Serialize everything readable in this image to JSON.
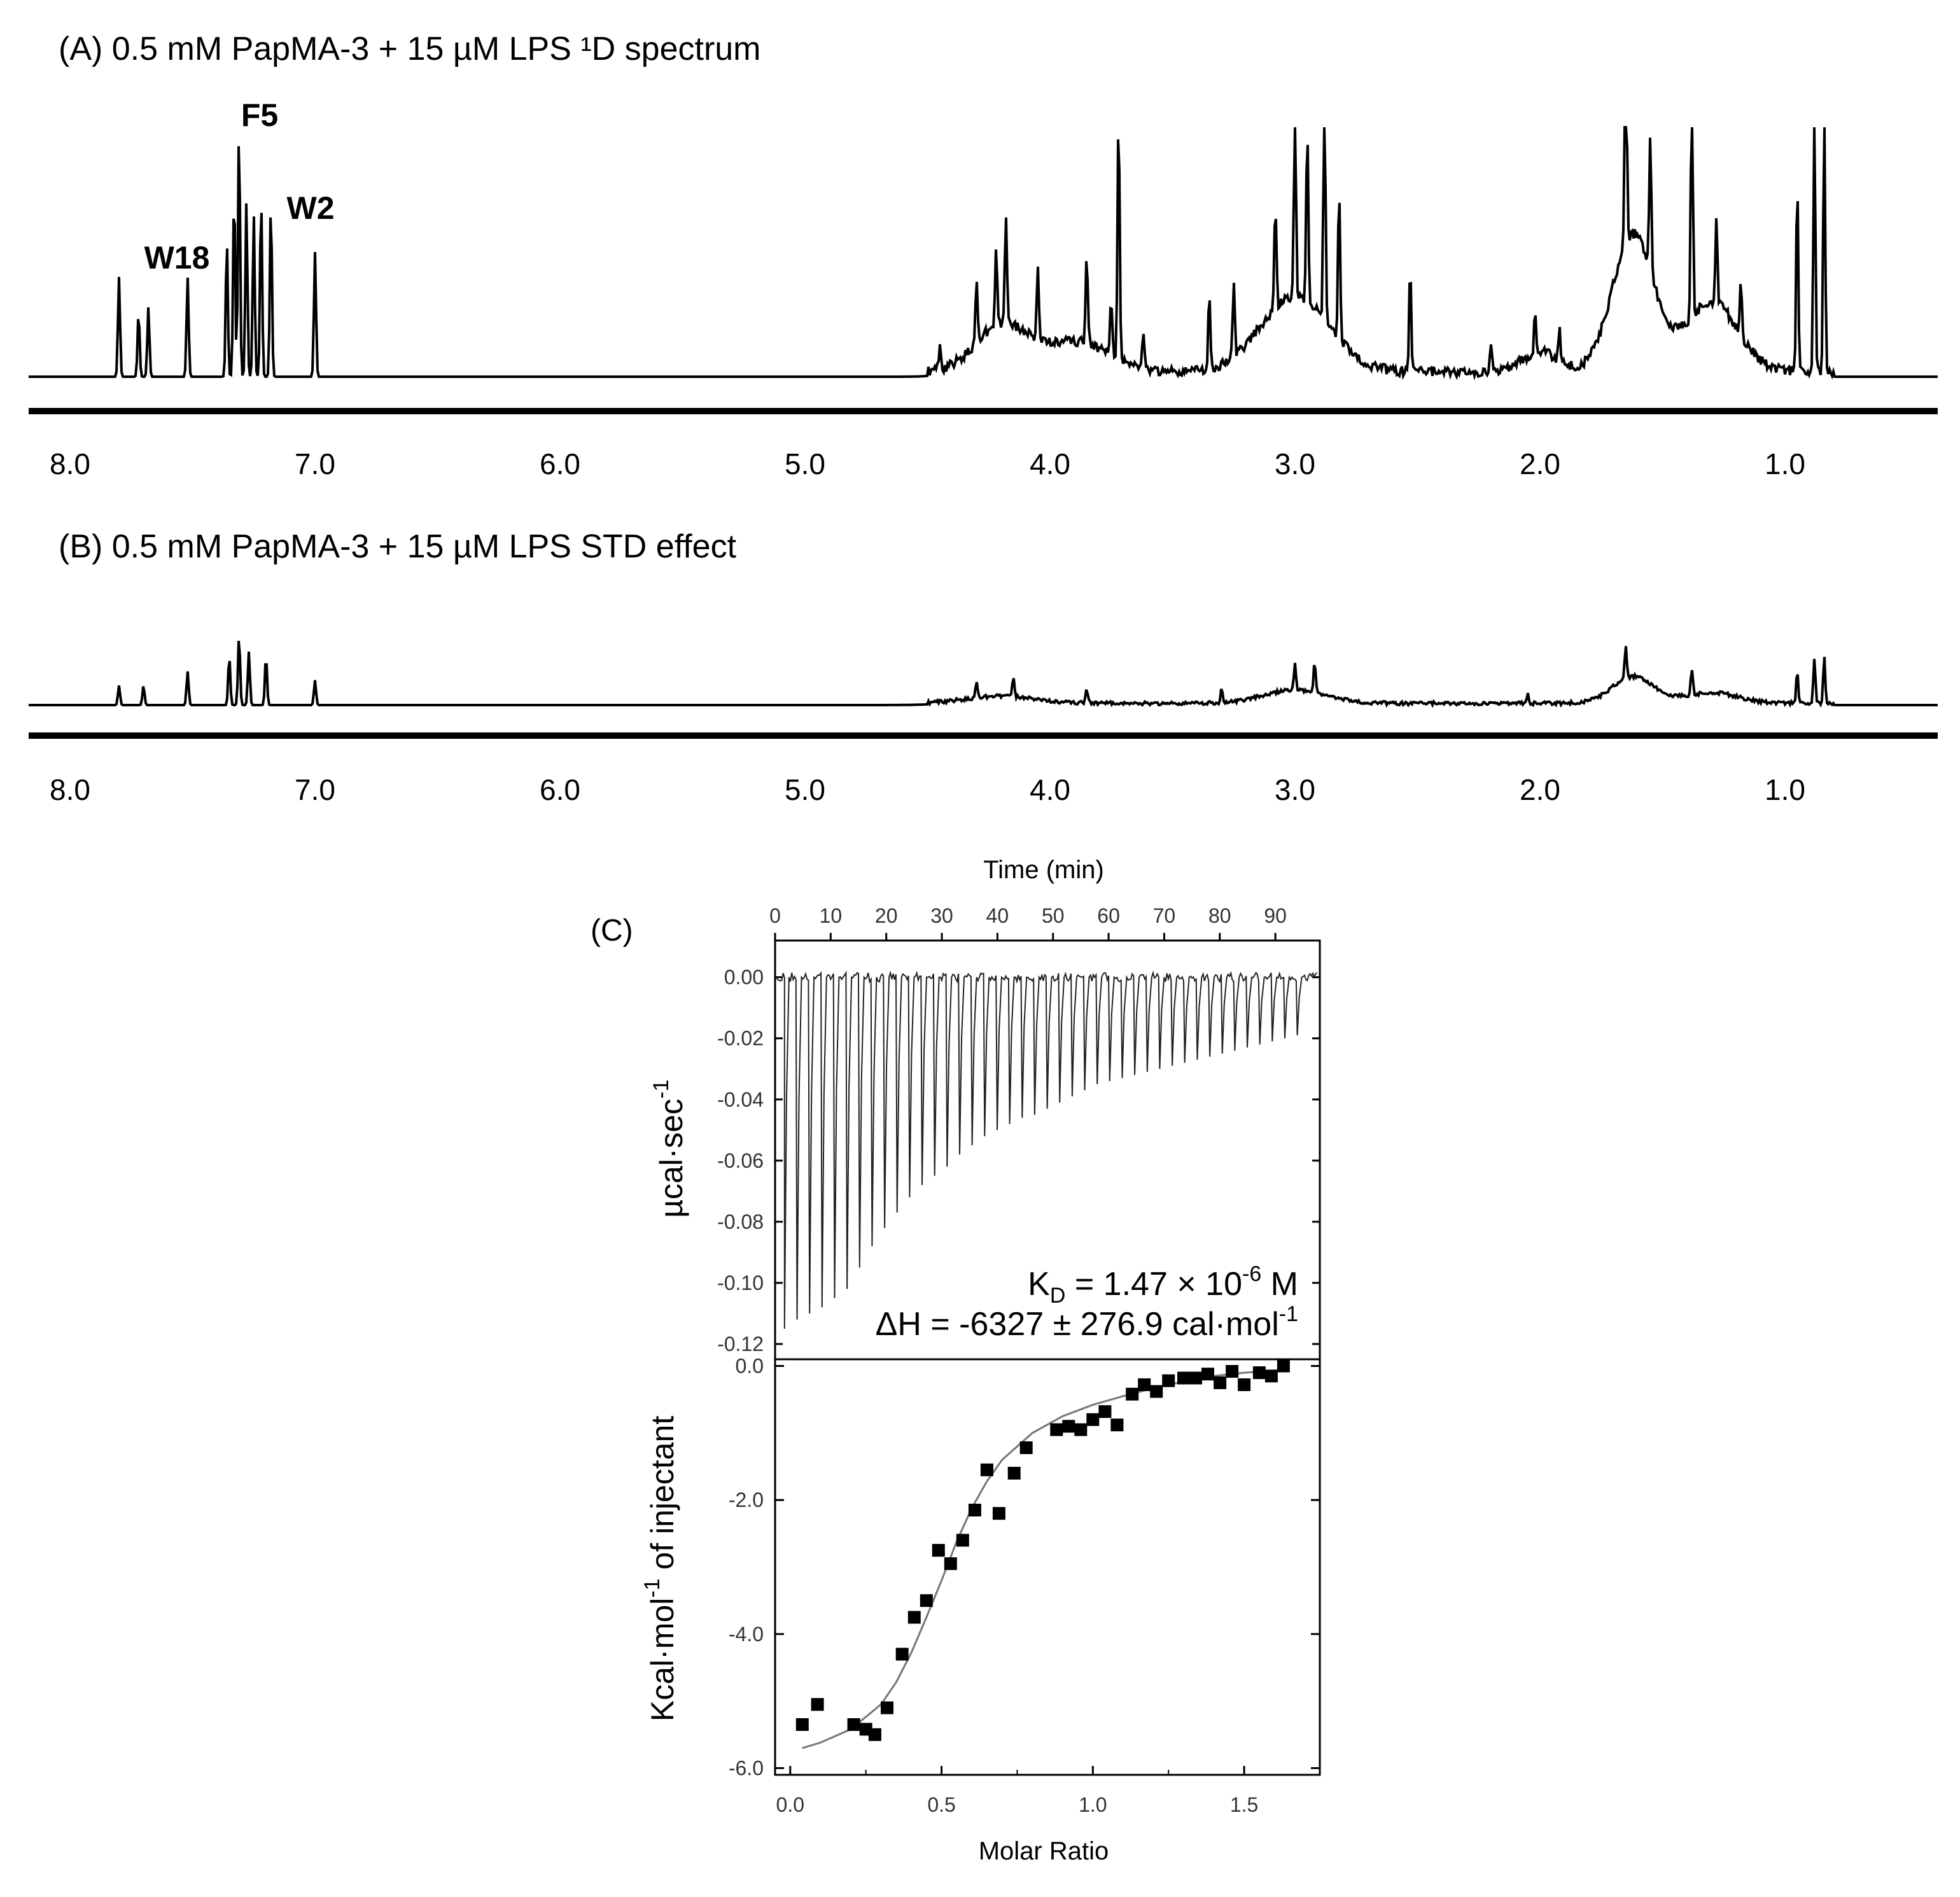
{
  "panelA": {
    "title": "(A) 0.5 mM PapMA-3 + 15 µM LPS ¹D spectrum",
    "peak_labels": [
      {
        "text": "F5",
        "ppm": 7.32
      },
      {
        "text": "W2",
        "ppm": 7.18
      },
      {
        "text": "W18",
        "ppm": 7.6
      }
    ]
  },
  "panelB": {
    "title": "(B) 0.5 mM PapMA-3 + 15 µM LPS STD effect"
  },
  "panelC": {
    "label": "(C)",
    "kd_text": "K",
    "kd_sub": "D",
    "kd_mid": " = 1.47 × 10",
    "kd_sup": "-6",
    "kd_end": " M",
    "dh_text": "ΔH = -6327 ± 276.9 cal·mol",
    "dh_sup": "-1"
  },
  "chart_data": [
    {
      "type": "line",
      "panel": "A",
      "x_axis": {
        "reversed": true,
        "range": [
          8.2,
          0.3
        ],
        "ticks": [
          "8.0",
          "7.0",
          "6.0",
          "5.0",
          "4.0",
          "3.0",
          "2.0",
          "1.0"
        ]
      },
      "peaks": [
        {
          "ppm": 7.8,
          "h": 0.4
        },
        {
          "ppm": 7.72,
          "h": 0.26
        },
        {
          "ppm": 7.68,
          "h": 0.28
        },
        {
          "ppm": 7.52,
          "h": 0.4
        },
        {
          "ppm": 7.36,
          "h": 0.55
        },
        {
          "ppm": 7.33,
          "h": 0.75
        },
        {
          "ppm": 7.31,
          "h": 1.0
        },
        {
          "ppm": 7.28,
          "h": 0.7
        },
        {
          "ppm": 7.25,
          "h": 0.65
        },
        {
          "ppm": 7.22,
          "h": 0.72
        },
        {
          "ppm": 7.18,
          "h": 0.7
        },
        {
          "ppm": 7.0,
          "h": 0.5
        },
        {
          "ppm": 4.45,
          "h": 0.08
        },
        {
          "ppm": 4.3,
          "h": 0.25
        },
        {
          "ppm": 4.22,
          "h": 0.3
        },
        {
          "ppm": 4.18,
          "h": 0.42
        },
        {
          "ppm": 4.05,
          "h": 0.28
        },
        {
          "ppm": 3.85,
          "h": 0.35
        },
        {
          "ppm": 3.75,
          "h": 0.22
        },
        {
          "ppm": 3.72,
          "h": 1.0
        },
        {
          "ppm": 3.62,
          "h": 0.15
        },
        {
          "ppm": 3.35,
          "h": 0.28
        },
        {
          "ppm": 3.25,
          "h": 0.3
        },
        {
          "ppm": 3.08,
          "h": 0.42
        },
        {
          "ppm": 3.0,
          "h": 0.8
        },
        {
          "ppm": 2.95,
          "h": 0.7
        },
        {
          "ppm": 2.88,
          "h": 0.98
        },
        {
          "ppm": 2.82,
          "h": 0.6
        },
        {
          "ppm": 2.53,
          "h": 0.42
        },
        {
          "ppm": 2.2,
          "h": 0.1
        },
        {
          "ppm": 2.02,
          "h": 0.15
        },
        {
          "ppm": 1.92,
          "h": 0.12
        },
        {
          "ppm": 1.65,
          "h": 1.0
        },
        {
          "ppm": 1.55,
          "h": 0.55
        },
        {
          "ppm": 1.38,
          "h": 0.98
        },
        {
          "ppm": 1.28,
          "h": 0.35
        },
        {
          "ppm": 1.18,
          "h": 0.2
        },
        {
          "ppm": 0.95,
          "h": 0.75
        },
        {
          "ppm": 0.88,
          "h": 1.0
        },
        {
          "ppm": 0.84,
          "h": 1.0
        }
      ]
    },
    {
      "type": "line",
      "panel": "B",
      "x_axis": {
        "reversed": true,
        "range": [
          8.2,
          0.3
        ],
        "ticks": [
          "8.0",
          "7.0",
          "6.0",
          "5.0",
          "4.0",
          "3.0",
          "2.0",
          "1.0"
        ]
      },
      "peaks": [
        {
          "ppm": 7.8,
          "h": 0.22
        },
        {
          "ppm": 7.7,
          "h": 0.22
        },
        {
          "ppm": 7.52,
          "h": 0.38
        },
        {
          "ppm": 7.35,
          "h": 0.55
        },
        {
          "ppm": 7.31,
          "h": 0.78
        },
        {
          "ppm": 7.27,
          "h": 0.6
        },
        {
          "ppm": 7.2,
          "h": 0.55
        },
        {
          "ppm": 7.0,
          "h": 0.28
        },
        {
          "ppm": 4.3,
          "h": 0.18
        },
        {
          "ppm": 4.15,
          "h": 0.22
        },
        {
          "ppm": 3.85,
          "h": 0.15
        },
        {
          "ppm": 3.3,
          "h": 0.15
        },
        {
          "ppm": 3.0,
          "h": 0.3
        },
        {
          "ppm": 2.92,
          "h": 0.35
        },
        {
          "ppm": 2.05,
          "h": 0.12
        },
        {
          "ppm": 1.65,
          "h": 0.38
        },
        {
          "ppm": 1.38,
          "h": 0.3
        },
        {
          "ppm": 0.95,
          "h": 0.35
        },
        {
          "ppm": 0.88,
          "h": 0.5
        },
        {
          "ppm": 0.84,
          "h": 0.52
        }
      ]
    },
    {
      "type": "line",
      "panel": "C-top",
      "xlabel": "Time (min)",
      "ylabel": "µcal·sec",
      "ylabel_sup": "-1",
      "x_ticks": [
        "0",
        "10",
        "20",
        "30",
        "40",
        "50",
        "60",
        "70",
        "80",
        "90"
      ],
      "xlim": [
        0,
        98
      ],
      "y_ticks": [
        "0.00",
        "-0.02",
        "-0.04",
        "-0.06",
        "-0.08",
        "-0.10",
        "-0.12"
      ],
      "ylim": [
        -0.125,
        0.012
      ],
      "injections": {
        "count": 42,
        "first_time": 1.5,
        "interval": 2.25,
        "depths": [
          -0.115,
          -0.112,
          -0.11,
          -0.108,
          -0.105,
          -0.102,
          -0.095,
          -0.088,
          -0.082,
          -0.077,
          -0.072,
          -0.068,
          -0.065,
          -0.062,
          -0.058,
          -0.055,
          -0.052,
          -0.05,
          -0.048,
          -0.046,
          -0.045,
          -0.043,
          -0.041,
          -0.039,
          -0.037,
          -0.035,
          -0.034,
          -0.033,
          -0.032,
          -0.031,
          -0.03,
          -0.029,
          -0.028,
          -0.027,
          -0.026,
          -0.025,
          -0.024,
          -0.023,
          -0.022,
          -0.021,
          -0.02,
          -0.019
        ]
      }
    },
    {
      "type": "scatter",
      "panel": "C-bottom",
      "xlabel": "Molar Ratio",
      "ylabel": "Kcal·mol",
      "ylabel_sup": "-1",
      "ylabel_end": " of injectant",
      "x_ticks": [
        "0.0",
        "0.5",
        "1.0",
        "1.5"
      ],
      "xlim": [
        -0.05,
        1.75
      ],
      "y_ticks": [
        "0.0",
        "-2.0",
        "-4.0",
        "-6.0"
      ],
      "ylim": [
        -6.1,
        0.1
      ],
      "points": [
        [
          0.04,
          -5.35
        ],
        [
          0.09,
          -5.05
        ],
        [
          0.21,
          -5.35
        ],
        [
          0.25,
          -5.42
        ],
        [
          0.28,
          -5.5
        ],
        [
          0.32,
          -5.1
        ],
        [
          0.37,
          -4.3
        ],
        [
          0.41,
          -3.75
        ],
        [
          0.45,
          -3.5
        ],
        [
          0.49,
          -2.75
        ],
        [
          0.53,
          -2.95
        ],
        [
          0.57,
          -2.6
        ],
        [
          0.61,
          -2.15
        ],
        [
          0.65,
          -1.55
        ],
        [
          0.69,
          -2.2
        ],
        [
          0.74,
          -1.6
        ],
        [
          0.78,
          -1.22
        ],
        [
          0.88,
          -0.95
        ],
        [
          0.92,
          -0.9
        ],
        [
          0.96,
          -0.95
        ],
        [
          1.0,
          -0.8
        ],
        [
          1.04,
          -0.68
        ],
        [
          1.08,
          -0.88
        ],
        [
          1.13,
          -0.42
        ],
        [
          1.17,
          -0.28
        ],
        [
          1.21,
          -0.38
        ],
        [
          1.25,
          -0.22
        ],
        [
          1.3,
          -0.18
        ],
        [
          1.34,
          -0.18
        ],
        [
          1.38,
          -0.12
        ],
        [
          1.42,
          -0.25
        ],
        [
          1.46,
          -0.08
        ],
        [
          1.5,
          -0.28
        ],
        [
          1.55,
          -0.1
        ],
        [
          1.59,
          -0.15
        ],
        [
          1.63,
          0.0
        ]
      ],
      "fit": [
        [
          0.04,
          -5.7
        ],
        [
          0.1,
          -5.62
        ],
        [
          0.2,
          -5.42
        ],
        [
          0.3,
          -5.05
        ],
        [
          0.35,
          -4.72
        ],
        [
          0.4,
          -4.28
        ],
        [
          0.45,
          -3.75
        ],
        [
          0.5,
          -3.2
        ],
        [
          0.55,
          -2.62
        ],
        [
          0.6,
          -2.12
        ],
        [
          0.65,
          -1.72
        ],
        [
          0.7,
          -1.4
        ],
        [
          0.8,
          -1.0
        ],
        [
          0.9,
          -0.75
        ],
        [
          1.0,
          -0.58
        ],
        [
          1.1,
          -0.45
        ],
        [
          1.2,
          -0.33
        ],
        [
          1.3,
          -0.23
        ],
        [
          1.4,
          -0.15
        ],
        [
          1.5,
          -0.1
        ],
        [
          1.63,
          -0.06
        ]
      ]
    }
  ]
}
